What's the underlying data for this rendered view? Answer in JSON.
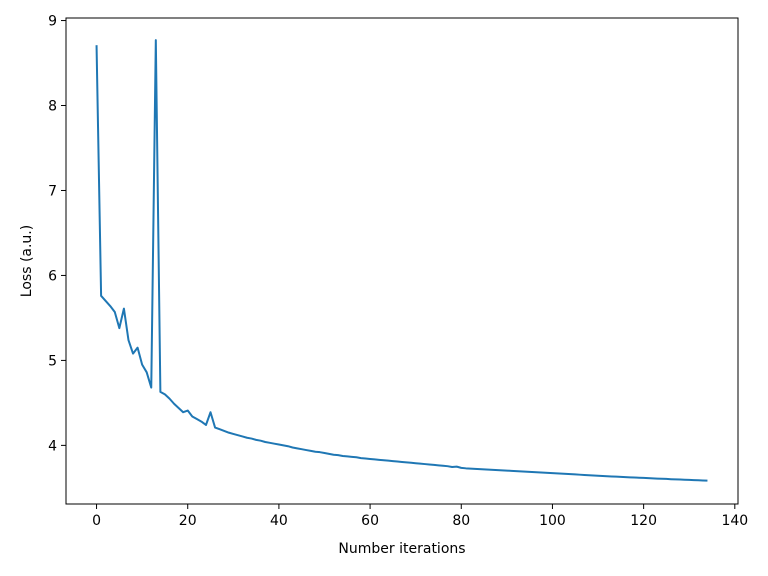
{
  "chart_data": {
    "type": "line",
    "xlabel": "Number iterations",
    "ylabel": "Loss (a.u.)",
    "x": [
      0,
      1,
      2,
      3,
      4,
      5,
      6,
      7,
      8,
      9,
      10,
      11,
      12,
      13,
      14,
      15,
      16,
      17,
      18,
      19,
      20,
      21,
      22,
      23,
      24,
      25,
      26,
      27,
      28,
      29,
      30,
      31,
      32,
      33,
      34,
      35,
      36,
      37,
      38,
      39,
      40,
      41,
      42,
      43,
      44,
      45,
      46,
      47,
      48,
      49,
      50,
      51,
      52,
      53,
      54,
      55,
      56,
      57,
      58,
      59,
      60,
      61,
      62,
      63,
      64,
      65,
      66,
      67,
      68,
      69,
      70,
      71,
      72,
      73,
      74,
      75,
      76,
      77,
      78,
      79,
      80,
      81,
      82,
      83,
      84,
      85,
      86,
      87,
      88,
      89,
      90,
      91,
      92,
      93,
      94,
      95,
      96,
      97,
      98,
      99,
      100,
      101,
      102,
      103,
      104,
      105,
      106,
      107,
      108,
      109,
      110,
      111,
      112,
      113,
      114,
      115,
      116,
      117,
      118,
      119,
      120,
      121,
      122,
      123,
      124,
      125,
      126,
      127,
      128,
      129,
      130,
      131,
      132,
      133,
      134
    ],
    "series": [
      {
        "name": "loss",
        "color": "#1f77b4",
        "values": [
          8.71,
          5.76,
          5.7,
          5.64,
          5.57,
          5.38,
          5.61,
          5.24,
          5.08,
          5.15,
          4.95,
          4.86,
          4.68,
          8.77,
          4.63,
          4.6,
          4.55,
          4.49,
          4.44,
          4.39,
          4.41,
          4.34,
          4.31,
          4.28,
          4.24,
          4.39,
          4.21,
          4.19,
          4.17,
          4.15,
          4.135,
          4.12,
          4.105,
          4.09,
          4.08,
          4.065,
          4.055,
          4.04,
          4.03,
          4.02,
          4.01,
          4.0,
          3.99,
          3.975,
          3.965,
          3.955,
          3.945,
          3.935,
          3.925,
          3.92,
          3.91,
          3.9,
          3.89,
          3.885,
          3.875,
          3.87,
          3.865,
          3.86,
          3.85,
          3.845,
          3.84,
          3.835,
          3.83,
          3.825,
          3.82,
          3.815,
          3.81,
          3.805,
          3.8,
          3.795,
          3.79,
          3.785,
          3.78,
          3.775,
          3.77,
          3.765,
          3.76,
          3.755,
          3.745,
          3.75,
          3.735,
          3.73,
          3.727,
          3.724,
          3.721,
          3.718,
          3.715,
          3.712,
          3.709,
          3.706,
          3.703,
          3.7,
          3.697,
          3.694,
          3.691,
          3.688,
          3.685,
          3.682,
          3.679,
          3.676,
          3.673,
          3.67,
          3.667,
          3.664,
          3.661,
          3.658,
          3.655,
          3.652,
          3.649,
          3.646,
          3.643,
          3.64,
          3.637,
          3.634,
          3.632,
          3.629,
          3.627,
          3.624,
          3.622,
          3.619,
          3.617,
          3.614,
          3.612,
          3.609,
          3.607,
          3.605,
          3.602,
          3.6,
          3.598,
          3.596,
          3.594,
          3.591,
          3.589,
          3.587,
          3.585
        ]
      }
    ],
    "xlim": [
      -6.7,
      140.7
    ],
    "ylim": [
      3.31,
      9.03
    ],
    "xticks": [
      0,
      20,
      40,
      60,
      80,
      100,
      120,
      140
    ],
    "yticks": [
      4,
      5,
      6,
      7,
      8,
      9
    ]
  }
}
